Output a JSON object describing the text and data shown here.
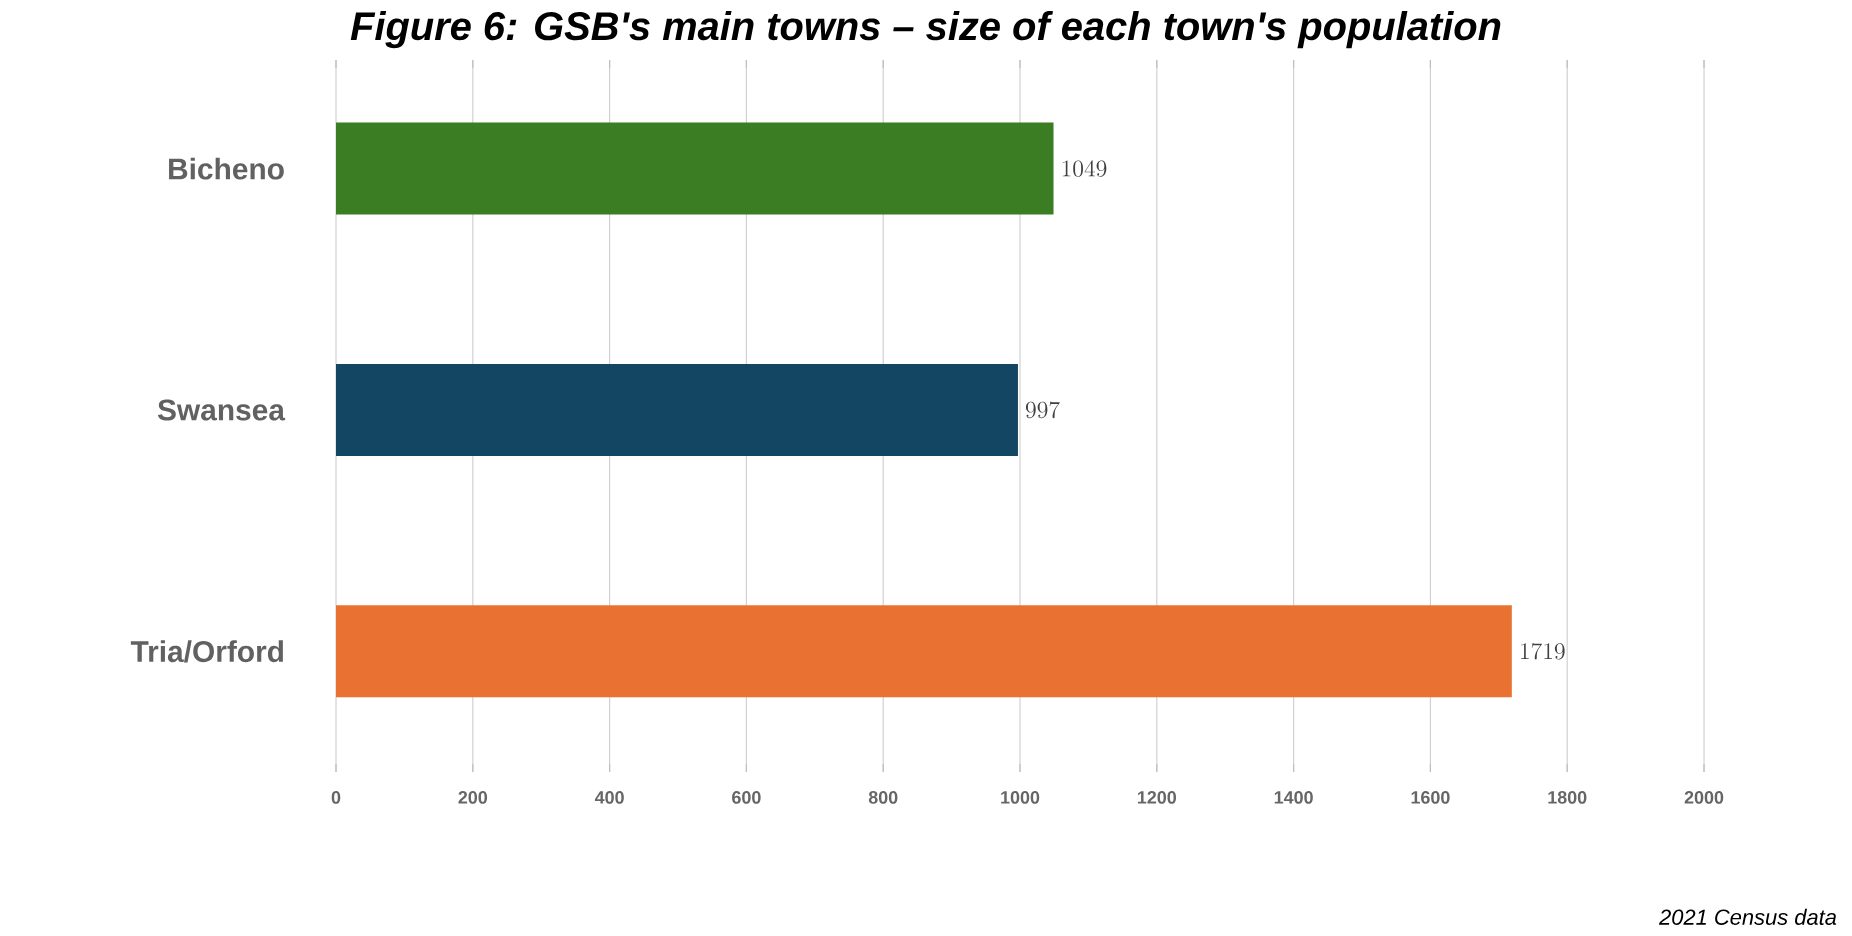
{
  "chart_data": {
    "type": "bar",
    "orientation": "horizontal",
    "title": "Figure 6: GSB's main towns – size of each town's population",
    "categories": [
      "Bicheno",
      "Swansea",
      "Tria/Orford"
    ],
    "values": [
      1049,
      997,
      1719
    ],
    "colors": [
      "#3a7d23",
      "#124663",
      "#e97132"
    ],
    "xlim": [
      0,
      2000
    ],
    "xticks": [
      0,
      200,
      400,
      600,
      800,
      1000,
      1200,
      1400,
      1600,
      1800,
      2000
    ],
    "grid": "x",
    "data_labels": true,
    "annotations": [
      "2021 Census data"
    ]
  }
}
